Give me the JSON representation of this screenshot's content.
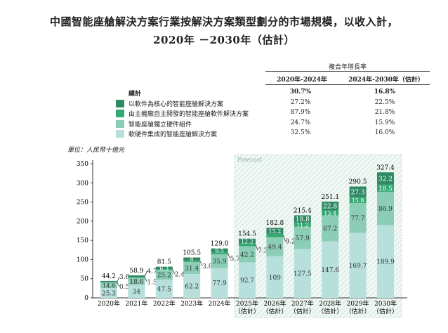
{
  "title_line1": "中國智能座艙解決方案行業按解決方案類型劃分的市場規模，以收入計，",
  "title_line2": "2020年 －2030年（估計）",
  "cagr_table": {
    "header": "複合年增長率",
    "columns": [
      "2020年-2024年",
      "2024年-2030年（估計）"
    ],
    "rows": [
      {
        "label": "總計",
        "v1": "30.7%",
        "v2": "16.8%",
        "color": null
      },
      {
        "label": "以軟件為核心的智能座艙解決方案",
        "v1": "27.2%",
        "v2": "22.5%",
        "color": "#2f8a64"
      },
      {
        "label": "由主機廠自主開發的智能座艙軟件解決方案",
        "v1": "87.9%",
        "v2": "21.8%",
        "color": "#35a873"
      },
      {
        "label": "智能座艙獨立硬件組件",
        "v1": "24.7%",
        "v2": "15.9%",
        "color": "#8ccdb6"
      },
      {
        "label": "軟硬件集成的智能座艙解決方案",
        "v1": "32.5%",
        "v2": "16.0%",
        "color": "#b7e0dd"
      }
    ]
  },
  "unit_label": "單位：人民幣十億元",
  "chart_data": {
    "type": "bar",
    "stacked": true,
    "forecast_label": "Forecast",
    "categories": [
      "2020年",
      "2021年",
      "2022年",
      "2023年",
      "2024年",
      "2025年",
      "2026年",
      "2027年",
      "2028年",
      "2029年",
      "2030年"
    ],
    "category_sublabels": [
      "",
      "",
      "",
      "",
      "",
      "（估計）",
      "（估計）",
      "（估計）",
      "（估計）",
      "（估計）",
      "（估計）"
    ],
    "series": [
      {
        "name": "軟硬件集成的智能座艙解決方案",
        "color": "#b7e0dd",
        "values": [
          25.3,
          34.0,
          47.5,
          62.2,
          77.9,
          92.7,
          109.0,
          127.5,
          147.6,
          169.7,
          189.9
        ]
      },
      {
        "name": "智能座艙獨立硬件組件",
        "color": "#8ccdb6",
        "values": [
          14.8,
          18.6,
          25.2,
          31.4,
          35.9,
          42.2,
          49.4,
          57.9,
          67.2,
          77.7,
          86.9
        ]
      },
      {
        "name": "由主機廠自主開發的智能座艙軟件解決方案",
        "color": "#35a873",
        "values": [
          0.5,
          1.5,
          2.4,
          3.8,
          5.7,
          7.3,
          9.2,
          11.2,
          13.4,
          15.8,
          18.5
        ]
      },
      {
        "name": "以軟件為核心的智能座艙解決方案",
        "color": "#2f8a64",
        "values": [
          3.6,
          4.7,
          6.3,
          8.0,
          9.5,
          12.2,
          15.2,
          18.8,
          22.8,
          27.3,
          32.2
        ]
      }
    ],
    "totals": [
      "44.2",
      "58.9",
      "81.5",
      "105.5",
      "129.0",
      "154.5",
      "182.8",
      "215.4",
      "251.1",
      "290.5",
      "327.4"
    ],
    "ylim": [
      0,
      350
    ],
    "yticks": [
      0,
      50,
      100,
      150,
      200,
      250,
      300,
      350
    ],
    "forecast_start_index": 5
  }
}
